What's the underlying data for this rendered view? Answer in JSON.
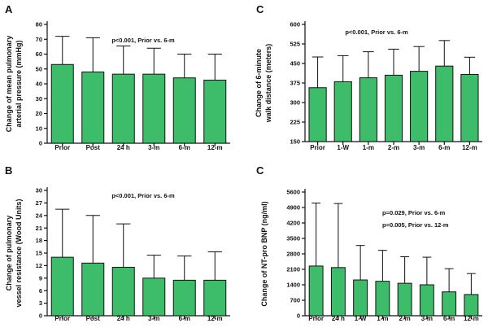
{
  "chart_data": [
    {
      "type": "bar",
      "panel": "A",
      "ylabel": [
        "Change of mean pulmonary",
        "arterial pressure (mmHg)"
      ],
      "categories": [
        "Prior",
        "Post",
        "24 h",
        "3-m",
        "6-m",
        "12-m"
      ],
      "values": [
        53,
        48,
        46.5,
        46.5,
        44,
        42.5
      ],
      "errors": [
        19,
        23,
        19,
        17.5,
        16,
        17.5
      ],
      "yticks": [
        0,
        10,
        20,
        30,
        40,
        50,
        60,
        70,
        80
      ],
      "ylim": [
        0,
        80
      ],
      "annotations": [
        "p<0.001, Prior vs. 6-m"
      ],
      "color": "#3dbd6a"
    },
    {
      "type": "bar",
      "panel": "C",
      "ylabel": [
        "Change of 6-minute",
        "walk distance (meters)"
      ],
      "categories": [
        "Prior",
        "1-W",
        "1-m",
        "2-m",
        "3-m",
        "6-m",
        "12-m"
      ],
      "values": [
        357,
        380,
        395,
        405,
        420,
        440,
        408
      ],
      "errors": [
        118,
        100,
        100,
        100,
        95,
        98,
        66
      ],
      "yticks": [
        150,
        225,
        300,
        375,
        450,
        525,
        600
      ],
      "ylim": [
        150,
        600
      ],
      "annotations": [
        "p<0.001, Prior vs. 6-m"
      ],
      "color": "#3dbd6a"
    },
    {
      "type": "bar",
      "panel": "B",
      "ylabel": [
        "Change of pulmonary",
        "vessel resistance (Wood Units)"
      ],
      "categories": [
        "Prior",
        "Post",
        "24 h",
        "3-m",
        "6-m",
        "12-m"
      ],
      "values": [
        14,
        12.6,
        11.6,
        9,
        8.5,
        8.5
      ],
      "errors": [
        11.5,
        11.4,
        10.4,
        5.5,
        5.8,
        6.8
      ],
      "yticks": [
        0,
        3,
        6,
        9,
        12,
        15,
        18,
        21,
        24,
        27,
        30
      ],
      "ylim": [
        0,
        30
      ],
      "annotations": [
        "p<0.001, Prior vs. 6-m"
      ],
      "color": "#3dbd6a"
    },
    {
      "type": "bar",
      "panel": "C",
      "ylabel": [
        "Change of NT-pro BNP (ng/ml)"
      ],
      "categories": [
        "Prior",
        "24 h",
        "1-W",
        "1-m",
        "2-m",
        "3-m",
        "6-m",
        "12-m"
      ],
      "values": [
        2250,
        2180,
        1620,
        1560,
        1470,
        1400,
        1080,
        960
      ],
      "errors": [
        2850,
        2900,
        1560,
        1400,
        1200,
        1250,
        1050,
        950
      ],
      "yticks": [
        0,
        700,
        1400,
        2100,
        2800,
        3500,
        4200,
        4900,
        5600
      ],
      "ylim": [
        0,
        5600
      ],
      "annotations": [
        "p=0.029, Prior vs. 6-m",
        "p=0.005, Prior vs. 12-m"
      ],
      "color": "#3dbd6a"
    }
  ]
}
